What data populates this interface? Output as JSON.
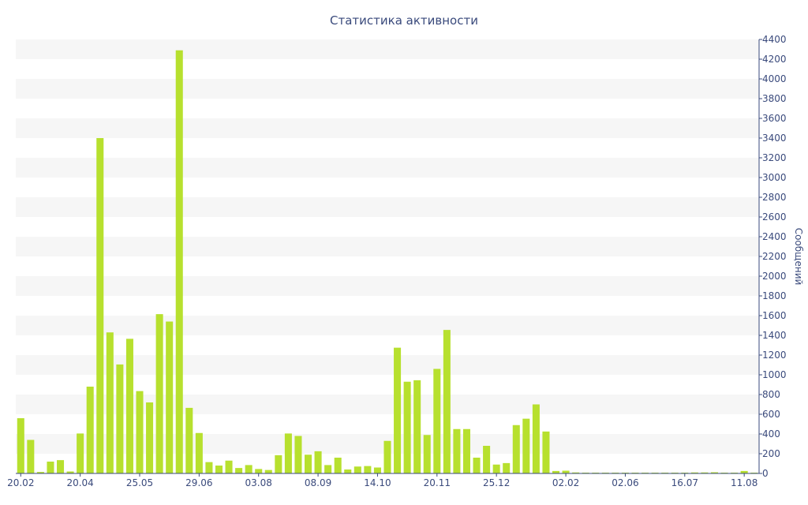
{
  "chart_data": {
    "type": "bar",
    "title": "Статистика активности",
    "ylabel": "Сообщений",
    "xlabel": "",
    "ylim": [
      0,
      4400
    ],
    "y_ticks": [
      0,
      200,
      400,
      600,
      800,
      1000,
      1200,
      1400,
      1600,
      1800,
      2000,
      2200,
      2400,
      2600,
      2800,
      3000,
      3200,
      3400,
      3600,
      3800,
      4000,
      4200,
      4400
    ],
    "x_tick_labels": [
      "20.02",
      "20.04",
      "25.05",
      "29.06",
      "03.08",
      "08.09",
      "14.10",
      "20.11",
      "25.12",
      "02.02",
      "02.06",
      "16.07",
      "11.08"
    ],
    "x_tick_bar_index": [
      0,
      6,
      12,
      18,
      24,
      30,
      36,
      42,
      48,
      55,
      61,
      67,
      73
    ],
    "grid": "horizontal bands",
    "legend": "none",
    "y_axis_side": "right",
    "colors": {
      "bar": "#b7e02e",
      "band": "#f6f6f6",
      "axis": "#3a4a7c"
    },
    "values": [
      560,
      340,
      15,
      120,
      135,
      20,
      405,
      880,
      3400,
      1430,
      1105,
      1365,
      835,
      720,
      1615,
      1540,
      4290,
      665,
      410,
      115,
      80,
      130,
      55,
      85,
      45,
      35,
      185,
      405,
      380,
      190,
      225,
      85,
      160,
      40,
      70,
      75,
      60,
      330,
      1275,
      930,
      945,
      390,
      1060,
      1455,
      450,
      450,
      160,
      280,
      90,
      105,
      490,
      555,
      700,
      425,
      25,
      28,
      10,
      8,
      8,
      8,
      8,
      8,
      8,
      8,
      8,
      8,
      8,
      8,
      10,
      10,
      12,
      8,
      8,
      25,
      8
    ]
  }
}
